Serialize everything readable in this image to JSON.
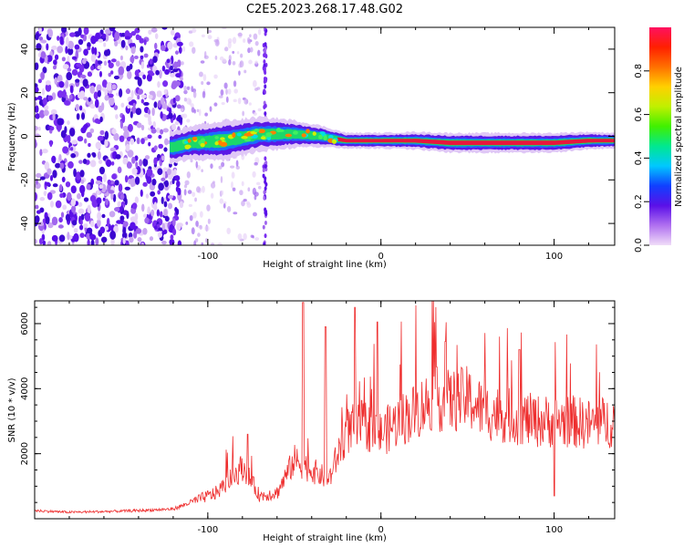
{
  "title": "C2E5.2023.268.17.48.G02",
  "colors": {
    "snr_line": "#ee2e2e",
    "band_core": "#e8173d",
    "band_edge": "#1bd86b",
    "noise": "#6a1fe0"
  },
  "chart_data": [
    {
      "type": "heatmap",
      "title": "",
      "xlabel": "Height of straight line (km)",
      "ylabel": "Frequency (Hz)",
      "xlim": [
        -200,
        135
      ],
      "ylim": [
        -50,
        50
      ],
      "xticks": [
        -100,
        0,
        100
      ],
      "yticks": [
        -40,
        -20,
        0,
        20,
        40
      ],
      "grid": false,
      "colorbar": {
        "label": "Normalized spectral amplitude",
        "range": [
          0,
          1
        ],
        "ticks": [
          0.0,
          0.2,
          0.4,
          0.6,
          0.8
        ],
        "colormap": [
          "#f0dcf8",
          "#b070f0",
          "#5a10e8",
          "#1040ff",
          "#00c8ff",
          "#00e890",
          "#40f000",
          "#c0f000",
          "#ffd000",
          "#ff7000",
          "#ff2000",
          "#ff1060"
        ]
      },
      "features": {
        "noise_region_x": [
          -200,
          -115
        ],
        "scatter_region_x": [
          -115,
          -70
        ],
        "vertical_streak_x": -67,
        "band_center_hz": [
          {
            "x": -120,
            "y": -5
          },
          {
            "x": -110,
            "y": -3
          },
          {
            "x": -90,
            "y": -2
          },
          {
            "x": -70,
            "y": 1
          },
          {
            "x": -50,
            "y": 1
          },
          {
            "x": -35,
            "y": 0
          },
          {
            "x": -20,
            "y": -2
          },
          {
            "x": 0,
            "y": -2
          },
          {
            "x": 20,
            "y": -2
          },
          {
            "x": 40,
            "y": -3
          },
          {
            "x": 60,
            "y": -3
          },
          {
            "x": 80,
            "y": -3
          },
          {
            "x": 100,
            "y": -3
          },
          {
            "x": 120,
            "y": -2
          },
          {
            "x": 135,
            "y": -2
          }
        ],
        "band_halfwidth_hz": [
          {
            "x": -120,
            "y": 4
          },
          {
            "x": -90,
            "y": 5
          },
          {
            "x": -60,
            "y": 4
          },
          {
            "x": -40,
            "y": 3
          },
          {
            "x": -20,
            "y": 2
          },
          {
            "x": 0,
            "y": 2
          },
          {
            "x": 40,
            "y": 2.5
          },
          {
            "x": 100,
            "y": 2.5
          },
          {
            "x": 135,
            "y": 2
          }
        ]
      }
    },
    {
      "type": "line",
      "title": "",
      "xlabel": "Height of straight line (km)",
      "ylabel": "SNR (10 * v/v)",
      "xlim": [
        -200,
        135
      ],
      "ylim": [
        0,
        6700
      ],
      "xticks": [
        -100,
        0,
        100
      ],
      "yticks": [
        2000,
        4000,
        6000
      ],
      "grid": false,
      "series": [
        {
          "color": "#ee2e2e",
          "envelope": [
            {
              "x": -200,
              "y": 250
            },
            {
              "x": -180,
              "y": 200
            },
            {
              "x": -160,
              "y": 220
            },
            {
              "x": -140,
              "y": 250
            },
            {
              "x": -120,
              "y": 300
            },
            {
              "x": -105,
              "y": 600
            },
            {
              "x": -95,
              "y": 800
            },
            {
              "x": -85,
              "y": 1300
            },
            {
              "x": -80,
              "y": 1600
            },
            {
              "x": -70,
              "y": 700
            },
            {
              "x": -60,
              "y": 800
            },
            {
              "x": -50,
              "y": 1800
            },
            {
              "x": -40,
              "y": 1500
            },
            {
              "x": -30,
              "y": 1200
            },
            {
              "x": -20,
              "y": 2700
            },
            {
              "x": -10,
              "y": 2900
            },
            {
              "x": 0,
              "y": 2600
            },
            {
              "x": 10,
              "y": 3000
            },
            {
              "x": 20,
              "y": 3300
            },
            {
              "x": 30,
              "y": 3700
            },
            {
              "x": 40,
              "y": 3600
            },
            {
              "x": 50,
              "y": 3700
            },
            {
              "x": 60,
              "y": 3300
            },
            {
              "x": 70,
              "y": 3200
            },
            {
              "x": 80,
              "y": 3100
            },
            {
              "x": 90,
              "y": 3000
            },
            {
              "x": 100,
              "y": 3000
            },
            {
              "x": 110,
              "y": 3000
            },
            {
              "x": 120,
              "y": 2900
            },
            {
              "x": 135,
              "y": 3000
            }
          ],
          "peaks": [
            {
              "x": -77,
              "y": 2600
            },
            {
              "x": -45,
              "y": 6650
            },
            {
              "x": -32,
              "y": 5900
            },
            {
              "x": -15,
              "y": 6500
            },
            {
              "x": -2,
              "y": 6050
            },
            {
              "x": 37,
              "y": 5450
            },
            {
              "x": 80,
              "y": 5200
            },
            {
              "x": 100,
              "y": 6100
            },
            {
              "x": 100,
              "y": 700
            }
          ]
        }
      ]
    }
  ]
}
